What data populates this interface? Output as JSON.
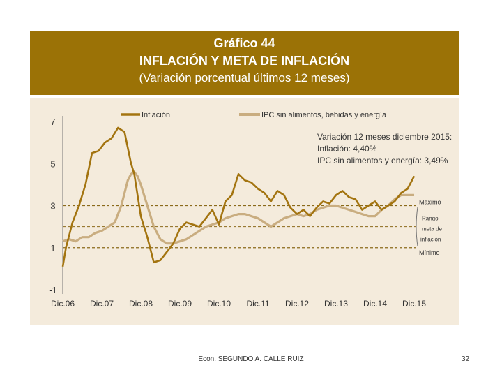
{
  "colors": {
    "header_bg": "#9b7206",
    "panel_bg": "#f4ebdc",
    "inflation": "#a37410",
    "core": "#c9ad80",
    "dash": "#8a6a1a"
  },
  "footer": {
    "author": "Econ. SEGUNDO A. CALLE RUIZ",
    "page": "32"
  },
  "chart_data": {
    "type": "line",
    "title": "Gráfico 44",
    "subtitle_1": "INFLACIÓN Y META DE INFLACIÓN",
    "subtitle_2": "(Variación porcentual últimos 12 meses)",
    "ylim": [
      -1,
      7
    ],
    "yticks": [
      "7",
      "5",
      "3",
      "1",
      "-1"
    ],
    "xticks": [
      "Dic.06",
      "Dic.07",
      "Dic.08",
      "Dic.09",
      "Dic.10",
      "Dic.11",
      "Dic.12",
      "Dic.13",
      "Dic.14",
      "Dic.15"
    ],
    "legend": [
      "Inflación",
      "IPC sin alimentos, bebidas y energía"
    ],
    "annotation": [
      "Variación 12 meses diciembre 2015:",
      "Inflación: 4,40%",
      "IPC sin alimentos y energía: 3,49%"
    ],
    "band_labels": {
      "max": "Máximo",
      "range_1": "Rango",
      "range_2": "meta de",
      "range_3": "inflación",
      "min": "Mínimo"
    },
    "target": {
      "max": 3,
      "min": 1,
      "center": 2
    },
    "series": [
      {
        "name": "Inflación",
        "x": [
          2006.917,
          2007.0,
          2007.167,
          2007.333,
          2007.5,
          2007.667,
          2007.833,
          2008.0,
          2008.167,
          2008.333,
          2008.5,
          2008.667,
          2008.75,
          2008.833,
          2008.917,
          2009.083,
          2009.25,
          2009.417,
          2009.583,
          2009.75,
          2009.917,
          2010.083,
          2010.25,
          2010.417,
          2010.583,
          2010.75,
          2010.917,
          2011.083,
          2011.25,
          2011.417,
          2011.583,
          2011.75,
          2011.917,
          2012.083,
          2012.25,
          2012.417,
          2012.583,
          2012.75,
          2012.917,
          2013.083,
          2013.25,
          2013.417,
          2013.583,
          2013.75,
          2013.917,
          2014.083,
          2014.25,
          2014.417,
          2014.583,
          2014.75,
          2014.917,
          2015.083,
          2015.25,
          2015.417,
          2015.583,
          2015.75,
          2015.917
        ],
        "values": [
          0.1,
          1.0,
          2.2,
          3.0,
          4.0,
          5.5,
          5.6,
          6.0,
          6.2,
          6.7,
          6.5,
          5.0,
          4.5,
          3.5,
          2.5,
          1.5,
          0.3,
          0.4,
          0.8,
          1.2,
          1.9,
          2.2,
          2.1,
          2.0,
          2.4,
          2.8,
          2.1,
          3.2,
          3.5,
          4.5,
          4.2,
          4.1,
          3.8,
          3.6,
          3.2,
          3.7,
          3.5,
          2.9,
          2.6,
          2.8,
          2.5,
          2.9,
          3.2,
          3.1,
          3.5,
          3.7,
          3.4,
          3.3,
          2.8,
          3.0,
          3.2,
          2.8,
          3.0,
          3.2,
          3.6,
          3.8,
          4.4
        ]
      },
      {
        "name": "IPC sin alimentos, bebidas y energía",
        "x": [
          2006.917,
          2007.083,
          2007.25,
          2007.417,
          2007.583,
          2007.75,
          2007.917,
          2008.083,
          2008.25,
          2008.417,
          2008.583,
          2008.667,
          2008.75,
          2008.833,
          2008.917,
          2009.083,
          2009.25,
          2009.417,
          2009.583,
          2009.75,
          2009.917,
          2010.083,
          2010.25,
          2010.417,
          2010.583,
          2010.75,
          2010.917,
          2011.083,
          2011.25,
          2011.417,
          2011.583,
          2011.75,
          2011.917,
          2012.083,
          2012.25,
          2012.417,
          2012.583,
          2012.75,
          2012.917,
          2013.083,
          2013.25,
          2013.417,
          2013.583,
          2013.75,
          2013.917,
          2014.083,
          2014.25,
          2014.417,
          2014.583,
          2014.75,
          2014.917,
          2015.083,
          2015.25,
          2015.417,
          2015.583,
          2015.75,
          2015.917
        ],
        "values": [
          1.3,
          1.4,
          1.3,
          1.5,
          1.5,
          1.7,
          1.8,
          2.0,
          2.2,
          3.0,
          4.2,
          4.5,
          4.6,
          4.4,
          4.0,
          3.0,
          2.0,
          1.4,
          1.2,
          1.2,
          1.3,
          1.4,
          1.6,
          1.8,
          2.0,
          2.1,
          2.2,
          2.4,
          2.5,
          2.6,
          2.6,
          2.5,
          2.4,
          2.2,
          2.0,
          2.2,
          2.4,
          2.5,
          2.6,
          2.5,
          2.6,
          2.8,
          2.9,
          3.0,
          3.0,
          2.9,
          2.8,
          2.7,
          2.6,
          2.5,
          2.5,
          2.8,
          3.0,
          3.3,
          3.5,
          3.5,
          3.5
        ]
      }
    ]
  }
}
